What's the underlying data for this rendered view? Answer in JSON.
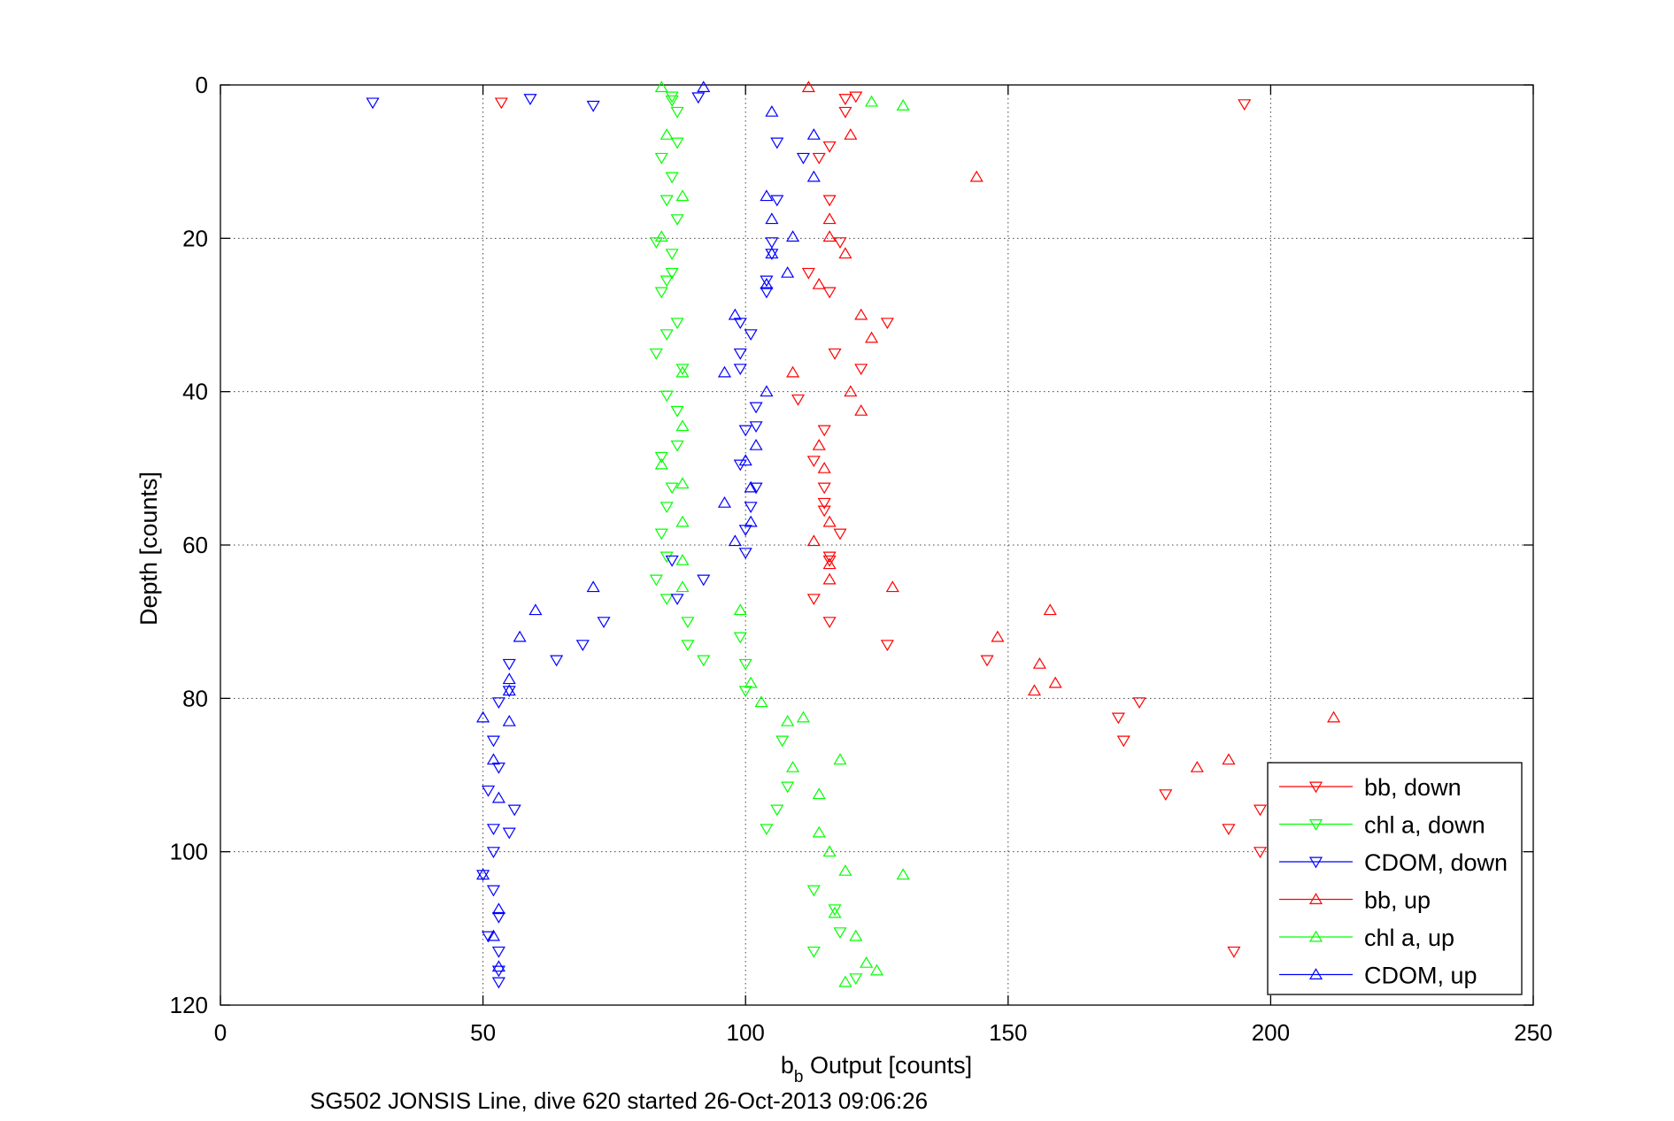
{
  "chart_data": {
    "type": "scatter",
    "xlabel_main": "b",
    "xlabel_sub": "b",
    "xlabel_rest": " Output [counts]",
    "ylabel": "Depth [counts]",
    "footer": "SG502 JONSIS Line, dive 620 started 26-Oct-2013 09:06:26",
    "xlim": [
      0,
      250
    ],
    "ylim": [
      0,
      120
    ],
    "y_reversed": true,
    "grid": true,
    "x_ticks": [
      "0",
      "50",
      "100",
      "150",
      "200",
      "250"
    ],
    "y_ticks": [
      "0",
      "20",
      "40",
      "60",
      "80",
      "100",
      "120"
    ],
    "legend_position": "bottom-right",
    "series": [
      {
        "name": "bb, down",
        "color": "#ff0000",
        "marker": "triangle-down",
        "points": [
          [
            121,
            1.5
          ],
          [
            119,
            1.8
          ],
          [
            53.5,
            2.3
          ],
          [
            195,
            2.5
          ],
          [
            119,
            3.5
          ],
          [
            116,
            8
          ],
          [
            114,
            9.5
          ],
          [
            116,
            15
          ],
          [
            118,
            20.5
          ],
          [
            112,
            24.5
          ],
          [
            116,
            27
          ],
          [
            127,
            31
          ],
          [
            117,
            35
          ],
          [
            122,
            37
          ],
          [
            110,
            41
          ],
          [
            115,
            45
          ],
          [
            113,
            49
          ],
          [
            115,
            52.5
          ],
          [
            115,
            54.5
          ],
          [
            115,
            55.5
          ],
          [
            118,
            58.5
          ],
          [
            116,
            61.5
          ],
          [
            116,
            62
          ],
          [
            113,
            67
          ],
          [
            116,
            70
          ],
          [
            127,
            73
          ],
          [
            146,
            75
          ],
          [
            175,
            80.5
          ],
          [
            171,
            82.5
          ],
          [
            172,
            85.5
          ],
          [
            180,
            92.5
          ],
          [
            198,
            94.5
          ],
          [
            192,
            97
          ],
          [
            198,
            100
          ],
          [
            193,
            113
          ]
        ]
      },
      {
        "name": "chl a, down",
        "color": "#00ff00",
        "marker": "triangle-down",
        "points": [
          [
            86,
            1.5
          ],
          [
            86,
            2
          ],
          [
            87,
            3.5
          ],
          [
            87,
            7.5
          ],
          [
            84,
            9.5
          ],
          [
            86,
            12
          ],
          [
            85,
            15
          ],
          [
            87,
            17.5
          ],
          [
            83,
            20.5
          ],
          [
            86,
            22
          ],
          [
            86,
            24.5
          ],
          [
            85,
            25.5
          ],
          [
            84,
            27
          ],
          [
            87,
            31
          ],
          [
            85,
            32.5
          ],
          [
            83,
            35
          ],
          [
            88,
            37
          ],
          [
            85,
            40.5
          ],
          [
            87,
            42.5
          ],
          [
            87,
            47
          ],
          [
            84,
            48.5
          ],
          [
            86,
            52.5
          ],
          [
            85,
            55
          ],
          [
            84,
            58.5
          ],
          [
            85,
            61.5
          ],
          [
            83,
            64.5
          ],
          [
            85,
            67
          ],
          [
            89,
            70
          ],
          [
            89,
            73
          ],
          [
            99,
            72
          ],
          [
            92,
            75
          ],
          [
            100,
            75.5
          ],
          [
            100,
            79
          ],
          [
            107,
            85.5
          ],
          [
            106,
            94.5
          ],
          [
            108,
            91.5
          ],
          [
            104,
            97
          ],
          [
            113,
            105
          ],
          [
            117,
            107.5
          ],
          [
            118,
            110.5
          ],
          [
            113,
            113
          ],
          [
            121,
            116.5
          ]
        ]
      },
      {
        "name": "CDOM, down",
        "color": "#0000ff",
        "marker": "triangle-down",
        "points": [
          [
            29,
            2.3
          ],
          [
            59,
            1.8
          ],
          [
            71,
            2.7
          ],
          [
            91,
            1.6
          ],
          [
            106,
            7.5
          ],
          [
            111,
            9.5
          ],
          [
            106,
            15
          ],
          [
            105,
            20.5
          ],
          [
            105,
            22
          ],
          [
            104,
            25.5
          ],
          [
            104,
            27
          ],
          [
            99,
            31
          ],
          [
            101,
            32.5
          ],
          [
            99,
            35
          ],
          [
            99,
            37
          ],
          [
            102,
            42
          ],
          [
            102,
            44.5
          ],
          [
            100,
            45
          ],
          [
            99,
            49.5
          ],
          [
            102,
            52.5
          ],
          [
            101,
            55
          ],
          [
            100,
            58
          ],
          [
            100,
            61
          ],
          [
            86,
            62
          ],
          [
            92,
            64.5
          ],
          [
            87,
            67
          ],
          [
            73,
            70
          ],
          [
            69,
            73
          ],
          [
            64,
            75
          ],
          [
            55,
            75.5
          ],
          [
            55,
            79
          ],
          [
            53,
            80.5
          ],
          [
            52,
            85.5
          ],
          [
            53,
            89
          ],
          [
            51,
            92
          ],
          [
            56,
            94.5
          ],
          [
            52,
            97
          ],
          [
            55,
            97.5
          ],
          [
            52,
            100
          ],
          [
            50,
            103
          ],
          [
            52,
            105
          ],
          [
            53,
            108.5
          ],
          [
            51,
            111
          ],
          [
            53,
            113
          ],
          [
            53,
            115.5
          ],
          [
            53,
            117
          ]
        ]
      },
      {
        "name": "bb, up",
        "color": "#ff0000",
        "marker": "triangle-up",
        "points": [
          [
            112,
            0.3
          ],
          [
            120,
            6.5
          ],
          [
            144,
            12
          ],
          [
            116,
            17.5
          ],
          [
            116,
            19.8
          ],
          [
            119,
            22
          ],
          [
            114,
            26
          ],
          [
            122,
            30
          ],
          [
            124,
            33
          ],
          [
            109,
            37.5
          ],
          [
            120,
            40
          ],
          [
            122,
            42.5
          ],
          [
            114,
            47
          ],
          [
            115,
            50
          ],
          [
            116,
            57
          ],
          [
            113,
            59.5
          ],
          [
            116,
            62.5
          ],
          [
            116,
            64.5
          ],
          [
            128,
            65.5
          ],
          [
            158,
            68.5
          ],
          [
            148,
            72
          ],
          [
            156,
            75.5
          ],
          [
            159,
            78
          ],
          [
            155,
            79
          ],
          [
            212,
            82.5
          ],
          [
            192,
            88
          ],
          [
            186,
            89
          ]
        ]
      },
      {
        "name": "chl a, up",
        "color": "#00ff00",
        "marker": "triangle-up",
        "points": [
          [
            84,
            0.3
          ],
          [
            124,
            2.2
          ],
          [
            130,
            2.7
          ],
          [
            85,
            6.5
          ],
          [
            88,
            14.5
          ],
          [
            84,
            19.8
          ],
          [
            88,
            37.5
          ],
          [
            88,
            44.5
          ],
          [
            84,
            49.5
          ],
          [
            88,
            52
          ],
          [
            88,
            57
          ],
          [
            88,
            62
          ],
          [
            88,
            65.5
          ],
          [
            99,
            68.5
          ],
          [
            101,
            78
          ],
          [
            103,
            80.5
          ],
          [
            111,
            82.5
          ],
          [
            108,
            83
          ],
          [
            118,
            88
          ],
          [
            109,
            89
          ],
          [
            114,
            92.5
          ],
          [
            114,
            97.5
          ],
          [
            116,
            100
          ],
          [
            119,
            102.5
          ],
          [
            130,
            103
          ],
          [
            117,
            108
          ],
          [
            121,
            111
          ],
          [
            123,
            114.5
          ],
          [
            125,
            115.5
          ],
          [
            119,
            117
          ]
        ]
      },
      {
        "name": "CDOM, up",
        "color": "#0000ff",
        "marker": "triangle-up",
        "points": [
          [
            92,
            0.3
          ],
          [
            105,
            3.5
          ],
          [
            113,
            6.5
          ],
          [
            113,
            12
          ],
          [
            104,
            14.5
          ],
          [
            105,
            17.5
          ],
          [
            109,
            19.8
          ],
          [
            105,
            22
          ],
          [
            108,
            24.5
          ],
          [
            104,
            26
          ],
          [
            98,
            30
          ],
          [
            96,
            37.5
          ],
          [
            104,
            40
          ],
          [
            102,
            47
          ],
          [
            100,
            49
          ],
          [
            101,
            52.5
          ],
          [
            96,
            54.5
          ],
          [
            101,
            57
          ],
          [
            98,
            59.5
          ],
          [
            71,
            65.5
          ],
          [
            60,
            68.5
          ],
          [
            57,
            72
          ],
          [
            55,
            77.5
          ],
          [
            55,
            79
          ],
          [
            50,
            82.5
          ],
          [
            55,
            83
          ],
          [
            52,
            88
          ],
          [
            53,
            93
          ],
          [
            50,
            103
          ],
          [
            53,
            107.5
          ],
          [
            52,
            111
          ],
          [
            53,
            115
          ]
        ]
      }
    ]
  }
}
